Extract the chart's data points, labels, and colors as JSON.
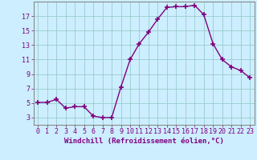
{
  "x": [
    0,
    1,
    2,
    3,
    4,
    5,
    6,
    7,
    8,
    9,
    10,
    11,
    12,
    13,
    14,
    15,
    16,
    17,
    18,
    19,
    20,
    21,
    22,
    23
  ],
  "y": [
    5.1,
    5.1,
    5.5,
    4.3,
    4.5,
    4.5,
    3.2,
    3.0,
    3.0,
    7.2,
    11.0,
    13.2,
    14.8,
    16.6,
    18.2,
    18.3,
    18.3,
    18.5,
    17.2,
    13.2,
    11.0,
    10.0,
    9.5,
    8.5
  ],
  "line_color": "#800080",
  "marker": "+",
  "markersize": 4,
  "linewidth": 1.0,
  "bg_color": "#cceeff",
  "grid_color": "#99cccc",
  "xlabel": "Windchill (Refroidissement éolien,°C)",
  "ylabel": "",
  "ylim": [
    2.0,
    19.0
  ],
  "xlim": [
    -0.5,
    23.5
  ],
  "yticks": [
    3,
    5,
    7,
    9,
    11,
    13,
    15,
    17
  ],
  "xticks": [
    0,
    1,
    2,
    3,
    4,
    5,
    6,
    7,
    8,
    9,
    10,
    11,
    12,
    13,
    14,
    15,
    16,
    17,
    18,
    19,
    20,
    21,
    22,
    23
  ],
  "tick_color": "#800080",
  "label_color": "#800080",
  "label_fontsize": 6.5,
  "tick_fontsize": 6.0,
  "axis_color": "#808080"
}
